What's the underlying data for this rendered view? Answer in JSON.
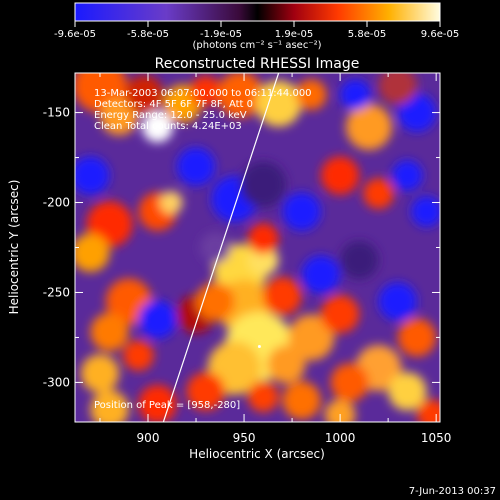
{
  "colorbar": {
    "tick_labels": [
      "-9.6e-05",
      "-5.8e-05",
      "-1.9e-05",
      "1.9e-05",
      "5.8e-05",
      "9.6e-05"
    ],
    "units_label": "(photons cm⁻² s⁻¹ asec⁻²)",
    "range": [
      -9.6e-05,
      9.6e-05
    ]
  },
  "chart_data": {
    "type": "heatmap",
    "title": "Reconstructed RHESSI Image",
    "xlabel": "Heliocentric X (arcsec)",
    "ylabel": "Heliocentric Y (arcsec)",
    "xlim": [
      862,
      1052
    ],
    "ylim": [
      -322,
      -128
    ],
    "x_ticks": [
      900,
      950,
      1000,
      1050
    ],
    "y_ticks": [
      -150,
      -200,
      -250,
      -300
    ],
    "annotations": [
      "13-Mar-2003 06:07:00.000 to 06:11:44.000",
      "Detectors: 4F 5F 6F 7F 8F, Att 0",
      "Energy Range: 12.0 - 25.0 keV",
      "Clean    Total counts: 4.24E+03"
    ],
    "peak_label": "Position of Peak = [958,-280]",
    "peak": [
      958,
      -280
    ],
    "limb_line": [
      [
        908,
        -322
      ],
      [
        968,
        -128
      ]
    ]
  },
  "footer": {
    "date": "7-Jun-2013 00:37"
  }
}
